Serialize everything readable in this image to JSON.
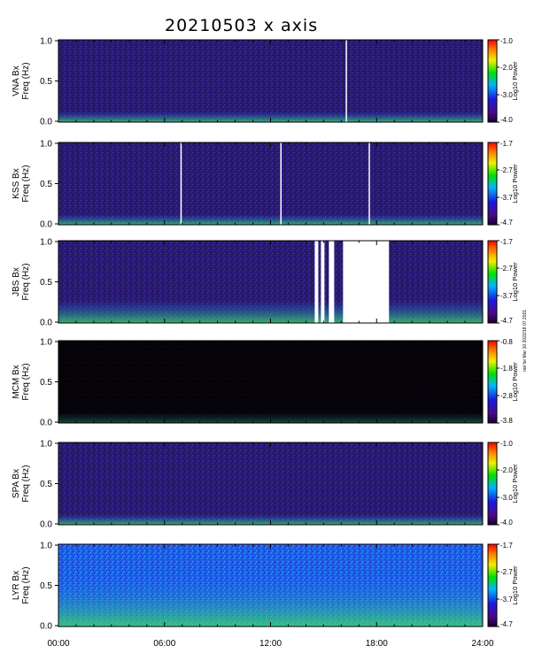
{
  "title": "20210503 x axis",
  "stamp": "not for Mar 10 2022/18 07 2021",
  "colors": {
    "background": "#ffffff",
    "axis": "#000000",
    "gap": "#ffffff"
  },
  "chart_data": [
    {
      "type": "heatmap",
      "station": "VNA Bx",
      "ylabel_line1": "VNA Bx",
      "ylabel_line2": "Freq (Hz)",
      "ylim": [
        0.0,
        1.0
      ],
      "yticks": [
        "0.0",
        "0.5",
        "1.0"
      ],
      "colorbar_label": "Log10 Power",
      "colorbar_ticks": [
        "-1.0",
        "-2.0",
        "-3.0",
        "-4.0"
      ],
      "colorbar_range": [
        -4.0,
        -1.0
      ],
      "gaps_hours": [
        [
          16.25,
          16.3
        ]
      ]
    },
    {
      "type": "heatmap",
      "station": "KSS Bx",
      "ylabel_line1": "KSS Bx",
      "ylabel_line2": "Freq (Hz)",
      "ylim": [
        0.0,
        1.0
      ],
      "yticks": [
        "0.0",
        "0.5",
        "1.0"
      ],
      "colorbar_label": "Log10 Power",
      "colorbar_ticks": [
        "-1.7",
        "-2.7",
        "-3.7",
        "-4.7"
      ],
      "colorbar_range": [
        -4.7,
        -1.7
      ],
      "gaps_hours": [
        [
          6.9,
          6.95
        ],
        [
          12.55,
          12.6
        ],
        [
          17.55,
          17.6
        ]
      ]
    },
    {
      "type": "heatmap",
      "station": "JBS Bx",
      "ylabel_line1": "JBS Bx",
      "ylabel_line2": "Freq (Hz)",
      "ylim": [
        0.0,
        1.0
      ],
      "yticks": [
        "0.0",
        "0.5",
        "1.0"
      ],
      "colorbar_label": "Log10 Power",
      "colorbar_ticks": [
        "-1.7",
        "-2.7",
        "-3.7",
        "-4.7"
      ],
      "colorbar_range": [
        -4.7,
        -1.7
      ],
      "gaps_hours": [
        [
          14.5,
          14.7
        ],
        [
          14.85,
          15.05
        ],
        [
          15.3,
          15.6
        ],
        [
          16.1,
          18.7
        ]
      ]
    },
    {
      "type": "heatmap",
      "station": "MCM Bx",
      "ylabel_line1": "MCM Bx",
      "ylabel_line2": "Freq (Hz)",
      "ylim": [
        0.0,
        1.0
      ],
      "yticks": [
        "0.0",
        "0.5",
        "1.0"
      ],
      "colorbar_label": "Log10 Power",
      "colorbar_ticks": [
        "-0.8",
        "-1.8",
        "-2.8",
        "-3.8"
      ],
      "colorbar_range": [
        -3.8,
        -0.8
      ],
      "gaps_hours": []
    },
    {
      "type": "heatmap",
      "station": "SPA Bx",
      "ylabel_line1": "SPA Bx",
      "ylabel_line2": "Freq (Hz)",
      "ylim": [
        0.0,
        1.0
      ],
      "yticks": [
        "0.0",
        "0.5",
        "1.0"
      ],
      "colorbar_label": "Log10 Power",
      "colorbar_ticks": [
        "-1.0",
        "-2.0",
        "-3.0",
        "-4.0"
      ],
      "colorbar_range": [
        -4.0,
        -1.0
      ],
      "gaps_hours": []
    },
    {
      "type": "heatmap",
      "station": "LYR Bx",
      "ylabel_line1": "LYR Bx",
      "ylabel_line2": "Freq (Hz)",
      "ylim": [
        0.0,
        1.0
      ],
      "yticks": [
        "0.0",
        "0.5",
        "1.0"
      ],
      "colorbar_label": "Log10 Power",
      "colorbar_ticks": [
        "-1.7",
        "-2.7",
        "-3.7",
        "-4.7"
      ],
      "colorbar_range": [
        -4.7,
        -1.7
      ],
      "gaps_hours": []
    }
  ],
  "x_axis": {
    "xlim_hours": [
      0,
      24
    ],
    "ticks": [
      "00:00",
      "06:00",
      "12:00",
      "18:00",
      "24:00"
    ]
  }
}
